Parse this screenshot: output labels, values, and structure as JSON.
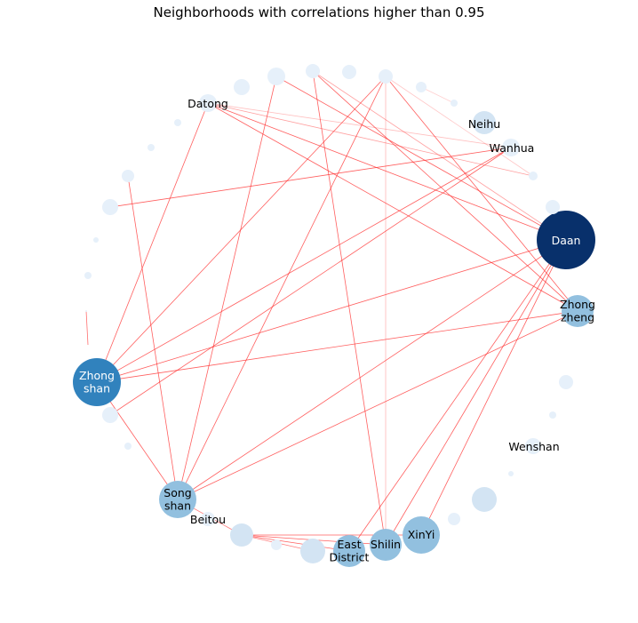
{
  "title": "Neighborhoods with correlations higher than 0.95",
  "colors": {
    "edge": "#ff2a2a",
    "node_darkest": "#08306b",
    "node_dark": "#3182bd",
    "node_mid": "#92c0df",
    "node_light": "#d3e4f3",
    "node_faint": "#e6f0fa",
    "label_light": "#ffffff",
    "label_dark": "#000000"
  },
  "labels": {
    "daan": "Daan",
    "zhongzheng": [
      "Zhong",
      "zheng"
    ],
    "zhongshan": [
      "Zhong",
      "shan"
    ],
    "songshan": [
      "Song",
      "shan"
    ],
    "xinyi": "XinYi",
    "shilin": "Shilin",
    "east_district": [
      "East",
      "District"
    ],
    "beitou": "Beitou",
    "datong": "Datong",
    "neihu": "Neihu",
    "wanhua": "Wanhua",
    "wenshan": "Wenshan"
  }
}
